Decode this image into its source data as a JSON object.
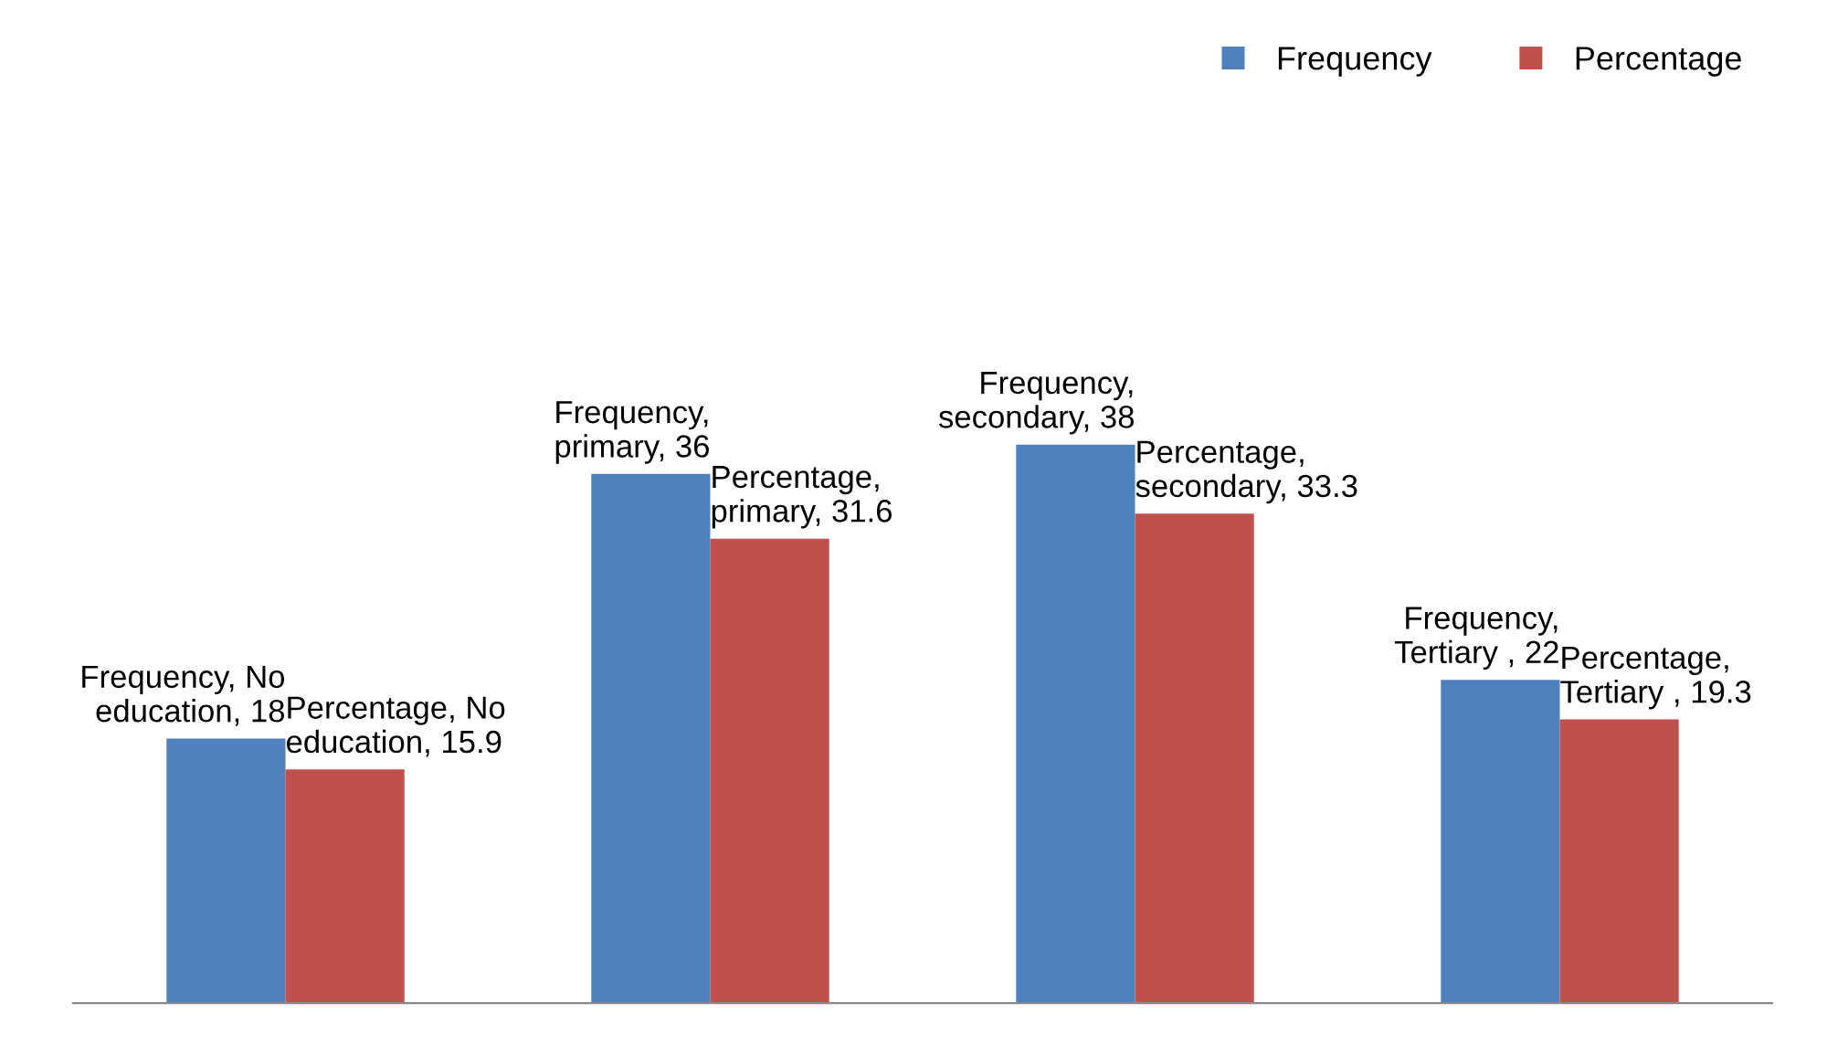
{
  "chart_data": {
    "type": "bar",
    "categories": [
      null,
      null,
      null,
      null
    ],
    "series": [
      {
        "name": "Frequency",
        "color": "#4f81bd",
        "values": [
          18,
          36,
          38,
          22
        ],
        "value_labels": [
          "Frequency, No\neducation, 18",
          "Frequency,\nprimary, 36",
          "Frequency,\nsecondary, 38",
          "Frequency,\nTertiary , 22"
        ]
      },
      {
        "name": "Percentage",
        "color": "#c0504d",
        "values": [
          15.9,
          31.6,
          33.3,
          19.3
        ],
        "value_labels": [
          "Percentage, No\neducation, 15.9",
          "Percentage,\nprimary, 31.6",
          "Percentage,\nsecondary, 33.3",
          "Percentage,\nTertiary , 19.3"
        ]
      }
    ],
    "legend": "top right",
    "grid": false
  }
}
